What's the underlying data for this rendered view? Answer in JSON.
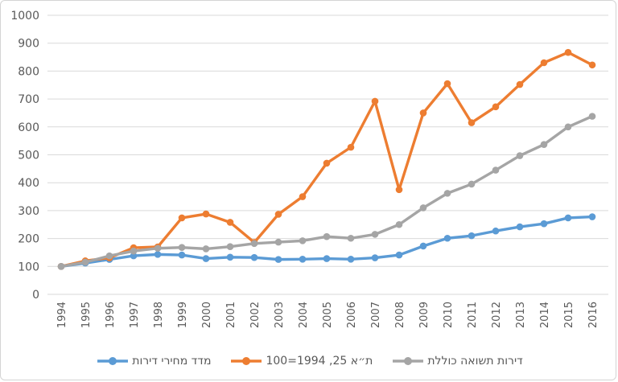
{
  "chart_data": {
    "type": "line",
    "title": "",
    "xlabel": "",
    "ylabel": "",
    "x_years": [
      "1994",
      "1995",
      "1996",
      "1997",
      "1998",
      "1999",
      "2000",
      "2001",
      "2002",
      "2003",
      "2004",
      "2005",
      "2006",
      "2007",
      "2008",
      "2009",
      "2010",
      "2011",
      "2012",
      "2013",
      "2014",
      "2015",
      "2016"
    ],
    "yticks": [
      0,
      100,
      200,
      300,
      400,
      500,
      600,
      700,
      800,
      900,
      1000
    ],
    "ylim": [
      0,
      1000
    ],
    "grid": true,
    "legend_position": "bottom",
    "axis_text_color": "#595959",
    "gridline_color": "#D9D9D9",
    "series": [
      {
        "key": "housing-price-index",
        "name": "מדד מחירי דירות",
        "color": "#5B9BD5",
        "values": [
          100,
          112,
          125,
          138,
          143,
          141,
          128,
          133,
          132,
          125,
          126,
          128,
          126,
          131,
          141,
          173,
          201,
          210,
          227,
          242,
          253,
          274,
          278
        ]
      },
      {
        "key": "ta25-index",
        "name": "ת״א 25, 1994=100",
        "color": "#ED7D31",
        "values": [
          100,
          120,
          131,
          167,
          170,
          274,
          288,
          258,
          186,
          287,
          350,
          470,
          527,
          692,
          375,
          650,
          755,
          615,
          672,
          752,
          830,
          867,
          822
        ]
      },
      {
        "key": "housing-total-return",
        "name": "דירות תשואה כוללת",
        "color": "#A5A5A5",
        "values": [
          100,
          115,
          138,
          155,
          165,
          168,
          163,
          171,
          182,
          187,
          192,
          207,
          201,
          215,
          250,
          310,
          362,
          395,
          445,
          497,
          537,
          600,
          638
        ]
      }
    ]
  }
}
